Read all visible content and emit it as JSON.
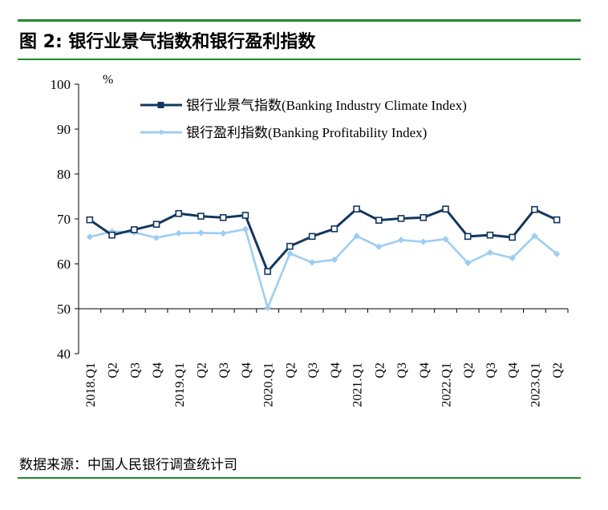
{
  "figure": {
    "title": "图 2: 银行业景气指数和银行盈利指数",
    "source": "数据来源：中国人民银行调查统计司"
  },
  "colors": {
    "rule": "#1f8a2e",
    "series1": "#12375f",
    "series2": "#9fcdf2",
    "axis": "#000000"
  },
  "chart_data": {
    "type": "line",
    "unit_label": "%",
    "ylim": [
      40,
      100
    ],
    "yticks": [
      40,
      50,
      60,
      70,
      80,
      90,
      100
    ],
    "grid": false,
    "legend_position": "top-center",
    "x": [
      "2018.Q1",
      "Q2",
      "Q3",
      "Q4",
      "2019.Q1",
      "Q2",
      "Q3",
      "Q4",
      "2020.Q1",
      "Q2",
      "Q3",
      "Q4",
      "2021.Q1",
      "Q2",
      "Q3",
      "Q4",
      "2022.Q1",
      "Q2",
      "Q3",
      "Q4",
      "2023.Q1",
      "Q2"
    ],
    "series": [
      {
        "name": "银行业景气指数(Banking Industry Climate Index)",
        "marker": "square",
        "values": [
          69.8,
          66.4,
          67.6,
          68.8,
          71.2,
          70.6,
          70.3,
          70.8,
          58.3,
          63.9,
          66.1,
          67.8,
          72.2,
          69.7,
          70.1,
          70.3,
          72.2,
          66.1,
          66.4,
          65.9,
          72.1,
          69.8
        ]
      },
      {
        "name": "银行盈利指数(Banking Profitability Index)",
        "marker": "diamond",
        "values": [
          66.0,
          67.2,
          67.0,
          65.8,
          66.8,
          66.9,
          66.8,
          67.7,
          50.2,
          62.3,
          60.3,
          60.9,
          66.2,
          63.8,
          65.3,
          64.9,
          65.5,
          60.2,
          62.5,
          61.3,
          66.2,
          62.2
        ]
      }
    ]
  }
}
